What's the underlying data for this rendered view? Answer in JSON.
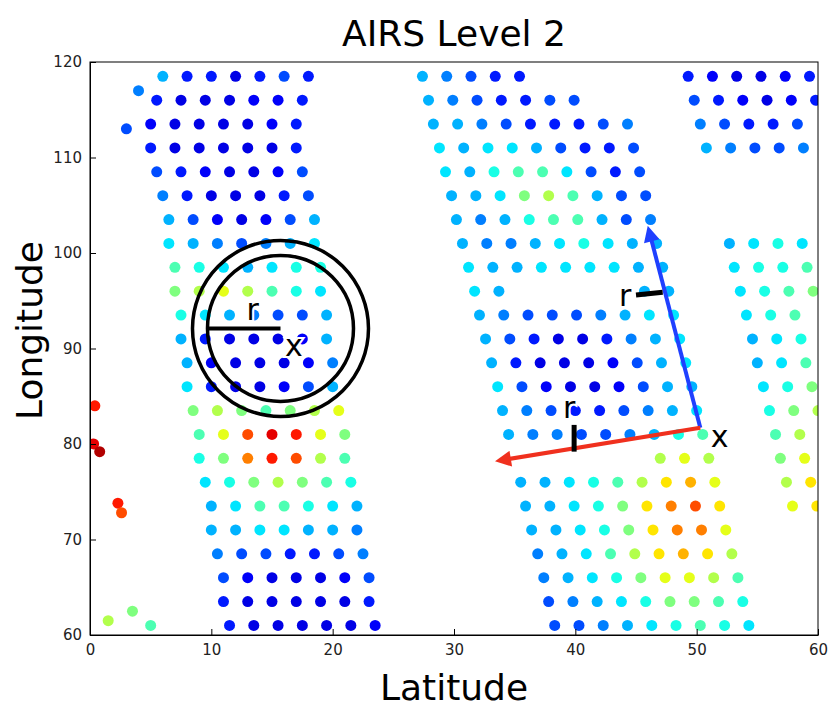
{
  "chart_data": {
    "type": "scatter",
    "title": "AIRS Level 2",
    "xlabel": "Latitude",
    "ylabel": "Longitude",
    "marker": "circle",
    "xlim": [
      0,
      60
    ],
    "ylim": [
      60,
      120
    ],
    "xticks": [
      0,
      10,
      20,
      30,
      40,
      50,
      60
    ],
    "yticks": [
      60,
      70,
      80,
      90,
      100,
      110,
      120
    ],
    "color_range": [
      0,
      1
    ],
    "x": [
      6,
      8,
      10,
      12,
      14,
      16,
      18,
      5.5,
      7.5,
      9.5,
      11.5,
      13.5,
      15.5,
      17.5,
      5,
      7,
      9,
      11,
      13,
      15,
      17,
      5,
      7,
      9,
      11,
      13,
      15,
      17,
      5.5,
      7.5,
      9.5,
      11.5,
      13.5,
      15.5,
      17.5,
      6,
      8,
      10,
      12,
      14,
      16,
      18,
      6.5,
      8.5,
      10.5,
      12.5,
      14.5,
      16.5,
      18.5,
      6.5,
      8.5,
      10.5,
      12.5,
      14.5,
      16.5,
      18.5,
      7,
      9,
      11,
      13,
      15,
      17,
      19,
      7,
      9,
      11,
      13,
      15,
      17,
      19,
      7.5,
      9.5,
      11.5,
      13.5,
      15.5,
      17.5,
      19.5,
      7.5,
      9.5,
      11.5,
      13.5,
      15.5,
      17.5,
      19.5,
      8,
      10,
      12,
      14,
      16,
      18,
      20,
      8,
      10,
      12,
      14,
      16,
      18,
      20,
      8.5,
      10.5,
      12.5,
      14.5,
      16.5,
      18.5,
      20.5,
      9,
      11,
      13,
      15,
      17,
      19,
      21,
      9,
      11,
      13,
      15,
      17,
      19,
      21,
      9.5,
      11.5,
      13.5,
      15.5,
      17.5,
      19.5,
      21.5,
      10,
      12,
      14,
      16,
      18,
      20,
      22,
      10,
      12,
      14,
      16,
      18,
      20,
      22,
      10.5,
      12.5,
      14.5,
      16.5,
      18.5,
      20.5,
      22.5,
      11,
      13,
      15,
      17,
      19,
      21,
      23,
      11,
      13,
      15,
      17,
      19,
      21,
      23,
      11.5,
      13.5,
      15.5,
      17.5,
      19.5,
      21.5,
      23.5,
      27.4,
      29.4,
      31.4,
      33.4,
      35.4,
      27.9,
      29.9,
      31.9,
      33.9,
      35.9,
      37.9,
      39.9,
      28.3,
      30.3,
      32.3,
      34.3,
      36.3,
      38.3,
      40.3,
      42.3,
      44.3,
      28.8,
      30.8,
      32.8,
      34.8,
      36.8,
      38.8,
      40.8,
      42.8,
      44.8,
      29.3,
      31.3,
      33.3,
      35.3,
      37.3,
      39.3,
      41.3,
      43.3,
      45.3,
      29.8,
      31.8,
      33.8,
      35.8,
      37.8,
      39.8,
      41.8,
      43.8,
      45.8,
      30.2,
      32.2,
      34.2,
      36.2,
      38.2,
      40.2,
      42.2,
      44.2,
      46.2,
      30.7,
      32.7,
      34.7,
      36.7,
      38.7,
      40.7,
      42.7,
      44.7,
      46.7,
      31.2,
      33.2,
      35.2,
      37.2,
      39.2,
      41.2,
      43.2,
      45.2,
      47.2,
      31.7,
      33.7,
      45.7,
      47.7,
      32.1,
      34.1,
      36.1,
      38.1,
      40.1,
      42.1,
      44.1,
      46.1,
      48.1,
      32.6,
      34.6,
      36.6,
      38.6,
      40.6,
      42.6,
      44.6,
      46.6,
      48.6,
      33.1,
      35.1,
      37.1,
      39.1,
      41.1,
      43.1,
      45.1,
      47.1,
      49.1,
      33.6,
      35.6,
      37.6,
      39.6,
      41.6,
      43.6,
      45.6,
      47.6,
      49.6,
      34,
      36,
      38,
      40,
      42,
      44,
      46,
      48,
      50,
      34.5,
      36.5,
      38.5,
      40.5,
      42.5,
      44.5,
      46.5,
      48.5,
      50.5,
      47,
      49,
      51,
      35.5,
      37.5,
      39.5,
      41.5,
      43.5,
      45.5,
      47.5,
      49.5,
      51.5,
      35.9,
      37.9,
      39.9,
      41.9,
      43.9,
      45.9,
      47.9,
      49.9,
      51.9,
      36.4,
      38.4,
      40.4,
      42.4,
      44.4,
      46.4,
      48.4,
      50.4,
      52.4,
      36.9,
      38.9,
      40.9,
      42.9,
      44.9,
      46.9,
      48.9,
      50.9,
      52.9,
      37.4,
      39.4,
      41.4,
      43.4,
      45.4,
      47.4,
      49.4,
      51.4,
      53.4,
      37.8,
      39.8,
      41.8,
      43.8,
      45.8,
      47.8,
      49.8,
      51.8,
      53.8,
      38.3,
      40.3,
      42.3,
      44.3,
      46.3,
      48.3,
      50.3,
      52.3,
      54.3,
      49.3,
      51.3,
      53.3,
      55.3,
      57.3,
      59.3,
      49.8,
      51.8,
      53.8,
      55.8,
      57.8,
      59.8,
      50.3,
      52.3,
      54.3,
      56.3,
      58.3,
      50.8,
      52.8,
      54.8,
      56.8,
      58.8,
      52.7,
      54.7,
      56.7,
      58.7,
      53.1,
      55.1,
      57.1,
      59.1,
      53.6,
      55.6,
      57.6,
      59.6,
      54.1,
      56.1,
      58.1,
      54.6,
      56.6,
      58.6,
      55,
      57,
      59,
      55.5,
      57.5,
      59.5,
      56,
      58,
      60,
      56.5,
      58.5,
      56.9,
      58.9,
      57.4,
      59.4,
      57.9,
      59.9,
      0.4,
      0.3,
      0.8,
      2.3,
      2.6,
      1.5,
      3.5,
      5,
      3,
      4
    ],
    "values": [
      118.5,
      118.5,
      118.5,
      118.5,
      118.5,
      118.5,
      118.5,
      116,
      116,
      116,
      116,
      116,
      116,
      116,
      113.5,
      113.5,
      113.5,
      113.5,
      113.5,
      113.5,
      113.5,
      111,
      111,
      111,
      111,
      111,
      111,
      111,
      108.5,
      108.5,
      108.5,
      108.5,
      108.5,
      108.5,
      108.5,
      106,
      106,
      106,
      106,
      106,
      106,
      106,
      103.5,
      103.5,
      103.5,
      103.5,
      103.5,
      103.5,
      103.5,
      101,
      101,
      101,
      101,
      101,
      101,
      101,
      98.5,
      98.5,
      98.5,
      98.5,
      98.5,
      98.5,
      98.5,
      96,
      96,
      96,
      96,
      96,
      96,
      96,
      93.5,
      93.5,
      93.5,
      93.5,
      93.5,
      93.5,
      93.5,
      91,
      91,
      91,
      91,
      91,
      91,
      91,
      88.5,
      88.5,
      88.5,
      88.5,
      88.5,
      88.5,
      88.5,
      86,
      86,
      86,
      86,
      86,
      86,
      86,
      83.5,
      83.5,
      83.5,
      83.5,
      83.5,
      83.5,
      83.5,
      81,
      81,
      81,
      81,
      81,
      81,
      81,
      78.5,
      78.5,
      78.5,
      78.5,
      78.5,
      78.5,
      78.5,
      76,
      76,
      76,
      76,
      76,
      76,
      76,
      73.5,
      73.5,
      73.5,
      73.5,
      73.5,
      73.5,
      73.5,
      71,
      71,
      71,
      71,
      71,
      71,
      71,
      68.5,
      68.5,
      68.5,
      68.5,
      68.5,
      68.5,
      68.5,
      66,
      66,
      66,
      66,
      66,
      66,
      66,
      63.5,
      63.5,
      63.5,
      63.5,
      63.5,
      63.5,
      63.5,
      61,
      61,
      61,
      61,
      61,
      61,
      61,
      118.5,
      118.5,
      118.5,
      118.5,
      118.5,
      116,
      116,
      116,
      116,
      116,
      116,
      116,
      113.5,
      113.5,
      113.5,
      113.5,
      113.5,
      113.5,
      113.5,
      113.5,
      113.5,
      111,
      111,
      111,
      111,
      111,
      111,
      111,
      111,
      111,
      108.5,
      108.5,
      108.5,
      108.5,
      108.5,
      108.5,
      108.5,
      108.5,
      108.5,
      106,
      106,
      106,
      106,
      106,
      106,
      106,
      106,
      106,
      103.5,
      103.5,
      103.5,
      103.5,
      103.5,
      103.5,
      103.5,
      103.5,
      103.5,
      101,
      101,
      101,
      101,
      101,
      101,
      101,
      101,
      101,
      98.5,
      98.5,
      98.5,
      98.5,
      98.5,
      98.5,
      98.5,
      98.5,
      98.5,
      96,
      96,
      96,
      96,
      93.5,
      93.5,
      93.5,
      93.5,
      93.5,
      93.5,
      93.5,
      93.5,
      93.5,
      91,
      91,
      91,
      91,
      91,
      91,
      91,
      91,
      91,
      88.5,
      88.5,
      88.5,
      88.5,
      88.5,
      88.5,
      88.5,
      88.5,
      88.5,
      86,
      86,
      86,
      86,
      86,
      86,
      86,
      86,
      86,
      83.5,
      83.5,
      83.5,
      83.5,
      83.5,
      83.5,
      83.5,
      83.5,
      83.5,
      81,
      81,
      81,
      81,
      81,
      81,
      81,
      81,
      81,
      78.5,
      78.5,
      78.5,
      76,
      76,
      76,
      76,
      76,
      76,
      76,
      76,
      76,
      73.5,
      73.5,
      73.5,
      73.5,
      73.5,
      73.5,
      73.5,
      73.5,
      73.5,
      71,
      71,
      71,
      71,
      71,
      71,
      71,
      71,
      71,
      68.5,
      68.5,
      68.5,
      68.5,
      68.5,
      68.5,
      68.5,
      68.5,
      68.5,
      66,
      66,
      66,
      66,
      66,
      66,
      66,
      66,
      66,
      63.5,
      63.5,
      63.5,
      63.5,
      63.5,
      63.5,
      63.5,
      63.5,
      63.5,
      61,
      61,
      61,
      61,
      61,
      61,
      61,
      61,
      61,
      118.5,
      118.5,
      118.5,
      118.5,
      118.5,
      118.5,
      116,
      116,
      116,
      116,
      116,
      116,
      113.5,
      113.5,
      113.5,
      113.5,
      113.5,
      111,
      111,
      111,
      111,
      111,
      101,
      101,
      101,
      101,
      98.5,
      98.5,
      98.5,
      98.5,
      96,
      96,
      96,
      96,
      93.5,
      93.5,
      93.5,
      91,
      91,
      91,
      88.5,
      88.5,
      88.5,
      86,
      86,
      86,
      83.5,
      83.5,
      83.5,
      81,
      81,
      78.5,
      78.5,
      76,
      76,
      73.5,
      73.5,
      84,
      80,
      79.2,
      73.8,
      72.8,
      61.5,
      62.5,
      61,
      113,
      117
    ],
    "color_values": [
      0.3,
      0.15,
      0.15,
      0.1,
      0.15,
      0.2,
      0.15,
      0.15,
      0.1,
      0.1,
      0.1,
      0.12,
      0.12,
      0.15,
      0.12,
      0.1,
      0.1,
      0.1,
      0.1,
      0.12,
      0.15,
      0.15,
      0.1,
      0.1,
      0.1,
      0.1,
      0.1,
      0.15,
      0.2,
      0.15,
      0.12,
      0.1,
      0.1,
      0.12,
      0.2,
      0.25,
      0.15,
      0.1,
      0.1,
      0.1,
      0.15,
      0.2,
      0.3,
      0.2,
      0.12,
      0.1,
      0.12,
      0.2,
      0.3,
      0.35,
      0.3,
      0.25,
      0.2,
      0.25,
      0.3,
      0.35,
      0.45,
      0.4,
      0.35,
      0.3,
      0.35,
      0.4,
      0.4,
      0.5,
      0.55,
      0.6,
      0.55,
      0.45,
      0.4,
      0.35,
      0.4,
      0.35,
      0.3,
      0.25,
      0.2,
      0.2,
      0.3,
      0.3,
      0.15,
      0.1,
      0.1,
      0.1,
      0.12,
      0.3,
      0.3,
      0.12,
      0.1,
      0.1,
      0.1,
      0.12,
      0.25,
      0.35,
      0.15,
      0.1,
      0.1,
      0.12,
      0.2,
      0.3,
      0.5,
      0.55,
      0.5,
      0.45,
      0.5,
      0.55,
      0.6,
      0.45,
      0.6,
      0.8,
      0.9,
      0.85,
      0.6,
      0.5,
      0.4,
      0.5,
      0.75,
      0.85,
      0.8,
      0.55,
      0.45,
      0.35,
      0.4,
      0.5,
      0.55,
      0.5,
      0.45,
      0.4,
      0.3,
      0.35,
      0.45,
      0.45,
      0.4,
      0.35,
      0.3,
      0.3,
      0.3,
      0.35,
      0.35,
      0.3,
      0.3,
      0.25,
      0.25,
      0.2,
      0.2,
      0.15,
      0.15,
      0.2,
      0.25,
      0.2,
      0.12,
      0.1,
      0.1,
      0.1,
      0.12,
      0.2,
      0.15,
      0.1,
      0.1,
      0.1,
      0.1,
      0.1,
      0.15,
      0.15,
      0.1,
      0.1,
      0.1,
      0.1,
      0.1,
      0.12,
      0.3,
      0.25,
      0.2,
      0.15,
      0.15,
      0.3,
      0.25,
      0.2,
      0.15,
      0.15,
      0.2,
      0.2,
      0.3,
      0.3,
      0.25,
      0.2,
      0.15,
      0.15,
      0.15,
      0.2,
      0.25,
      0.35,
      0.3,
      0.35,
      0.35,
      0.3,
      0.2,
      0.15,
      0.15,
      0.2,
      0.35,
      0.3,
      0.4,
      0.45,
      0.45,
      0.35,
      0.2,
      0.15,
      0.2,
      0.3,
      0.3,
      0.35,
      0.5,
      0.55,
      0.45,
      0.3,
      0.2,
      0.2,
      0.3,
      0.25,
      0.3,
      0.4,
      0.45,
      0.45,
      0.3,
      0.2,
      0.25,
      0.3,
      0.25,
      0.25,
      0.3,
      0.35,
      0.4,
      0.35,
      0.3,
      0.3,
      0.35,
      0.3,
      0.3,
      0.35,
      0.35,
      0.35,
      0.35,
      0.3,
      0.3,
      0.35,
      0.3,
      0.3,
      0.3,
      0.3,
      0.25,
      0.2,
      0.2,
      0.2,
      0.25,
      0.3,
      0.35,
      0.35,
      0.3,
      0.2,
      0.15,
      0.1,
      0.1,
      0.15,
      0.25,
      0.3,
      0.35,
      0.3,
      0.15,
      0.1,
      0.1,
      0.1,
      0.12,
      0.2,
      0.3,
      0.35,
      0.35,
      0.2,
      0.12,
      0.1,
      0.1,
      0.12,
      0.2,
      0.3,
      0.3,
      0.3,
      0.25,
      0.2,
      0.15,
      0.15,
      0.2,
      0.25,
      0.3,
      0.35,
      0.3,
      0.25,
      0.25,
      0.2,
      0.2,
      0.25,
      0.3,
      0.4,
      0.45,
      0.55,
      0.6,
      0.55,
      0.3,
      0.3,
      0.35,
      0.4,
      0.45,
      0.55,
      0.65,
      0.7,
      0.6,
      0.3,
      0.3,
      0.35,
      0.4,
      0.5,
      0.65,
      0.75,
      0.8,
      0.65,
      0.3,
      0.3,
      0.35,
      0.4,
      0.5,
      0.65,
      0.75,
      0.75,
      0.6,
      0.25,
      0.3,
      0.35,
      0.45,
      0.55,
      0.65,
      0.7,
      0.65,
      0.55,
      0.25,
      0.3,
      0.35,
      0.4,
      0.5,
      0.6,
      0.6,
      0.55,
      0.45,
      0.2,
      0.25,
      0.3,
      0.35,
      0.4,
      0.5,
      0.5,
      0.45,
      0.4,
      0.2,
      0.2,
      0.25,
      0.3,
      0.35,
      0.4,
      0.45,
      0.4,
      0.35,
      0.15,
      0.12,
      0.1,
      0.1,
      0.12,
      0.15,
      0.2,
      0.15,
      0.12,
      0.1,
      0.12,
      0.15,
      0.25,
      0.2,
      0.15,
      0.15,
      0.2,
      0.3,
      0.25,
      0.2,
      0.2,
      0.25,
      0.3,
      0.35,
      0.4,
      0.35,
      0.35,
      0.4,
      0.4,
      0.45,
      0.35,
      0.4,
      0.45,
      0.5,
      0.35,
      0.4,
      0.45,
      0.3,
      0.35,
      0.4,
      0.3,
      0.35,
      0.45,
      0.35,
      0.4,
      0.5,
      0.4,
      0.5,
      0.55,
      0.45,
      0.55,
      0.5,
      0.6,
      0.55,
      0.65,
      0.6,
      0.65,
      0.85,
      0.9,
      0.95,
      0.85,
      0.8,
      0.55,
      0.5,
      0.45,
      0.2,
      0.25
    ],
    "annotations": [
      {
        "text": "r",
        "x": 13.4,
        "y": 93.0
      },
      {
        "text": "x",
        "x": 16.8,
        "y": 89.2
      },
      {
        "text": "r",
        "x": 44.1,
        "y": 94.5
      },
      {
        "text": "r",
        "x": 39.5,
        "y": 82.7
      },
      {
        "text": "x",
        "x": 51.9,
        "y": 79.7
      }
    ],
    "shapes": [
      {
        "type": "circle",
        "x": 15.7,
        "y": 92.1
      },
      {
        "type": "arrow",
        "x": 50.3,
        "y": 81.7,
        "x2": 46.1,
        "y2": 102.2,
        "color": "#1f40ff"
      },
      {
        "type": "arrow",
        "x": 50.3,
        "y": 81.7,
        "x2": 33.9,
        "y2": 78.3,
        "color": "#f0301e"
      },
      {
        "type": "bar",
        "x": 45.0,
        "y": 95.6,
        "x2": 47.2,
        "y2": 95.9
      },
      {
        "type": "bar",
        "x": 39.9,
        "y": 82.0,
        "x2": 39.9,
        "y2": 79.2
      }
    ]
  }
}
